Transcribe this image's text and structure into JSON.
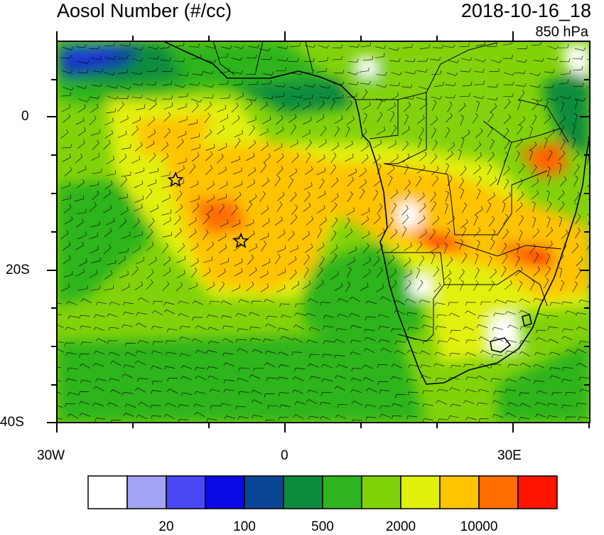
{
  "title_left": "Aosol Number (#/cc)",
  "title_right": "2018-10-16_18",
  "level": "850 hPa",
  "axes": {
    "lat_labels": [
      "0",
      "20S",
      "40S"
    ],
    "lon_labels": [
      "30W",
      "0",
      "30E"
    ]
  },
  "colorbar": {
    "colors": [
      "#ffffff",
      "#a3a3f5",
      "#4848f5",
      "#0a0ae6",
      "#0a4696",
      "#0a8c3c",
      "#2db41e",
      "#82d20a",
      "#e1f00a",
      "#ffc300",
      "#ff6e00",
      "#ff1400"
    ],
    "labels": [
      "20",
      "100",
      "500",
      "2000",
      "10000"
    ]
  },
  "markers": [
    "star",
    "star"
  ]
}
